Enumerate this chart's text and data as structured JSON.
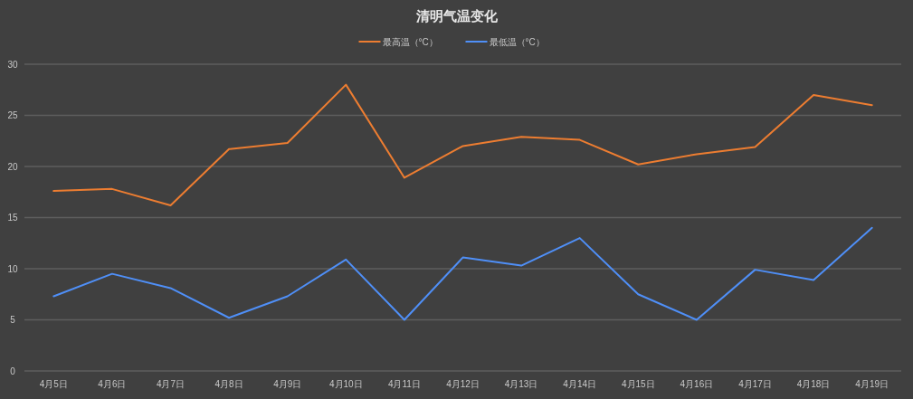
{
  "chart_data": {
    "type": "line",
    "title": "清明气温变化",
    "categories": [
      "4月5日",
      "4月6日",
      "4月7日",
      "4月8日",
      "4月9日",
      "4月10日",
      "4月11日",
      "4月12日",
      "4月13日",
      "4月14日",
      "4月15日",
      "4月16日",
      "4月17日",
      "4月18日",
      "4月19日"
    ],
    "series": [
      {
        "name": "最高温（°C）",
        "color": "#ed7d31",
        "values": [
          17.6,
          17.8,
          16.2,
          21.7,
          22.3,
          28.0,
          18.9,
          22.0,
          22.9,
          22.6,
          20.2,
          21.2,
          21.9,
          27.0,
          26.0
        ]
      },
      {
        "name": "最低温（°C）",
        "color": "#4f8ff7",
        "values": [
          7.3,
          9.5,
          8.1,
          5.2,
          7.3,
          10.9,
          5.0,
          11.1,
          10.3,
          13.0,
          7.5,
          5.0,
          9.9,
          8.9,
          14.0
        ]
      }
    ],
    "ylim": [
      0,
      30
    ],
    "yticks": [
      0,
      5,
      10,
      15,
      20,
      25,
      30
    ],
    "grid": "y",
    "legend": "top",
    "marker": "none",
    "line_style": "solid"
  }
}
